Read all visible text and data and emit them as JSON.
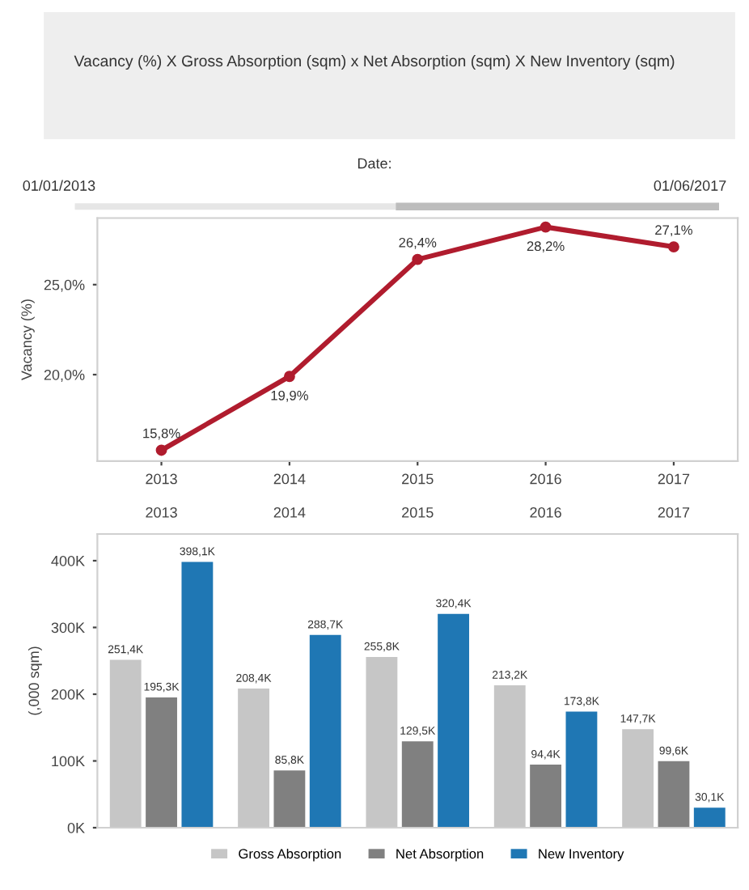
{
  "chart_data": [
    {
      "type": "line",
      "title": "Vacancy (%) X Gross Absorption (sqm) x Net Absorption (sqm) X New Inventory (sqm)",
      "ylabel": "Vacancy (%)",
      "annotations": [
        "Date:",
        "01/01/2013",
        "01/06/2017"
      ],
      "categories": [
        "2013",
        "2014",
        "2015",
        "2016",
        "2017"
      ],
      "series": [
        {
          "color": "#b01c2e",
          "values": [
            15.8,
            19.9,
            26.4,
            28.2,
            27.1
          ],
          "value_labels": [
            "15,8%",
            "19,9%",
            "26,4%",
            "28,2%",
            "27,1%"
          ]
        }
      ],
      "ylim": [
        15.2,
        28.7
      ],
      "yticks": [
        {
          "value": 20,
          "label": "20,0%"
        },
        {
          "value": 25,
          "label": "25,0%"
        }
      ],
      "marker": "circle",
      "grid": false,
      "legend": false
    },
    {
      "type": "bar",
      "ylabel": "(,000 sqm)",
      "categories": [
        "2013",
        "2014",
        "2015",
        "2016",
        "2017"
      ],
      "series": [
        {
          "name": "Gross Absorption",
          "color": "#c6c6c6",
          "values": [
            251400,
            208400,
            255800,
            213200,
            147700
          ],
          "value_labels": [
            "251,4K",
            "208,4K",
            "255,8K",
            "213,2K",
            "147,7K"
          ]
        },
        {
          "name": "Net Absorption",
          "color": "#808080",
          "values": [
            195300,
            85800,
            129500,
            94400,
            99600
          ],
          "value_labels": [
            "195,3K",
            "85,8K",
            "129,5K",
            "94,4K",
            "99,6K"
          ]
        },
        {
          "name": "New Inventory",
          "color": "#1f77b4",
          "values": [
            398100,
            288700,
            320400,
            173800,
            30100
          ],
          "value_labels": [
            "398,1K",
            "288,7K",
            "320,4K",
            "173,8K",
            "30,1K"
          ]
        }
      ],
      "ylim": [
        0,
        440000
      ],
      "yticks": [
        {
          "value": 0,
          "label": "0K"
        },
        {
          "value": 100000,
          "label": "100K"
        },
        {
          "value": 200000,
          "label": "200K"
        },
        {
          "value": 300000,
          "label": "300K"
        },
        {
          "value": 400000,
          "label": "400K"
        }
      ],
      "grid": false,
      "legend": "bottom"
    }
  ]
}
